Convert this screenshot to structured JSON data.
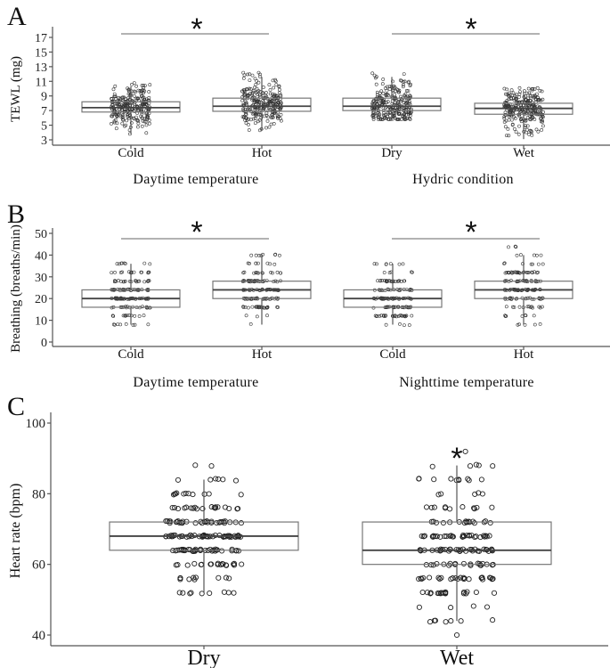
{
  "chart_data": [
    {
      "panel": "A",
      "type": "box",
      "ylabel": "TEWL (mg)",
      "yticks": [
        3,
        5,
        7,
        9,
        11,
        13,
        15,
        17
      ],
      "ylim": [
        2.3,
        18.5
      ],
      "groups": [
        {
          "xlabel": "Daytime temperature",
          "categories": [
            "Cold",
            "Hot"
          ],
          "significance": "*",
          "boxes": [
            {
              "category": "Cold",
              "q1": 6.8,
              "median": 7.4,
              "q3": 8.2,
              "whisker_low": 3.8,
              "whisker_high": 10.3
            },
            {
              "category": "Hot",
              "q1": 6.9,
              "median": 7.6,
              "q3": 8.7,
              "whisker_low": 4.3,
              "whisker_high": 11.6
            }
          ]
        },
        {
          "xlabel": "Hydric condition",
          "categories": [
            "Dry",
            "Wet"
          ],
          "significance": "*",
          "boxes": [
            {
              "category": "Dry",
              "q1": 7.0,
              "median": 7.6,
              "q3": 8.7,
              "whisker_low": 5.8,
              "whisker_high": 11.6
            },
            {
              "category": "Wet",
              "q1": 6.5,
              "median": 7.3,
              "q3": 8.0,
              "whisker_low": 3.1,
              "whisker_high": 9.6
            }
          ]
        }
      ]
    },
    {
      "panel": "B",
      "type": "box",
      "ylabel": "Breathing (breaths/min)",
      "yticks": [
        0,
        10,
        20,
        30,
        40,
        50
      ],
      "ylim": [
        -3,
        52
      ],
      "groups": [
        {
          "xlabel": "Daytime temperature",
          "categories": [
            "Cold",
            "Hot"
          ],
          "significance": "*",
          "boxes": [
            {
              "category": "Cold",
              "q1": 16,
              "median": 20,
              "q3": 24,
              "whisker_low": 8,
              "whisker_high": 36
            },
            {
              "category": "Hot",
              "q1": 20,
              "median": 24,
              "q3": 28,
              "whisker_low": 8,
              "whisker_high": 40
            }
          ]
        },
        {
          "xlabel": "Nighttime temperature",
          "categories": [
            "Cold",
            "Hot"
          ],
          "significance": "*",
          "boxes": [
            {
              "category": "Cold",
              "q1": 16,
              "median": 20,
              "q3": 24,
              "whisker_low": 8,
              "whisker_high": 36
            },
            {
              "category": "Hot",
              "q1": 20,
              "median": 24,
              "q3": 28,
              "whisker_low": 8,
              "whisker_high": 40
            }
          ]
        }
      ]
    },
    {
      "panel": "C",
      "type": "box",
      "ylabel": "Heart rate (bpm)",
      "yticks": [
        40,
        60,
        80,
        100
      ],
      "ylim": [
        37,
        103
      ],
      "groups": [
        {
          "xlabel": "",
          "categories": [
            "Dry",
            "Wet"
          ],
          "significance_on": "Wet",
          "significance": "*",
          "boxes": [
            {
              "category": "Dry",
              "q1": 64,
              "median": 68,
              "q3": 72,
              "whisker_low": 52,
              "whisker_high": 84
            },
            {
              "category": "Wet",
              "q1": 60,
              "median": 64,
              "q3": 72,
              "whisker_low": 44,
              "whisker_high": 88,
              "outliers": [
                40
              ]
            }
          ]
        }
      ]
    }
  ],
  "labels": {
    "panel_a": "A",
    "panel_b": "B",
    "panel_c": "C",
    "a_ylabel": "TEWL (mg)",
    "b_ylabel": "Breathing (breaths/min)",
    "c_ylabel": "Heart rate (bpm)",
    "a_group1": "Daytime temperature",
    "a_group2": "Hydric condition",
    "b_group1": "Daytime temperature",
    "b_group2": "Nighttime temperature",
    "a_cats": [
      "Cold",
      "Hot",
      "Dry",
      "Wet"
    ],
    "b_cats": [
      "Cold",
      "Hot",
      "Cold",
      "Hot"
    ],
    "c_cats": [
      "Dry",
      "Wet"
    ],
    "star": "*"
  }
}
